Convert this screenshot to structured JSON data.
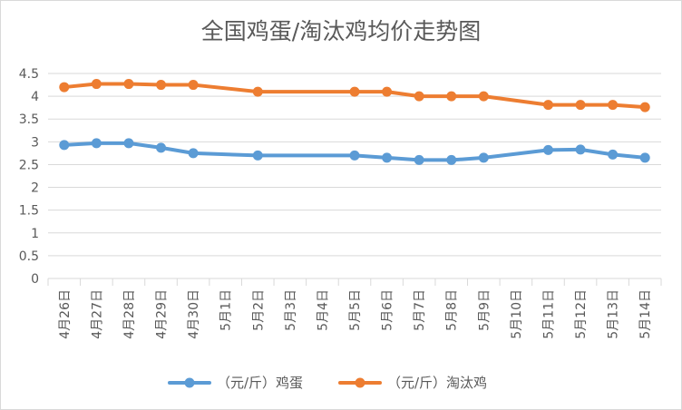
{
  "chart_data": {
    "type": "line",
    "title": "全国鸡蛋/淘汰鸡均价走势图",
    "categories": [
      "4月26日",
      "4月27日",
      "4月28日",
      "4月29日",
      "4月30日",
      "5月1日",
      "5月2日",
      "5月3日",
      "5月4日",
      "5月5日",
      "5月6日",
      "5月7日",
      "5月8日",
      "5月9日",
      "5月10日",
      "5月11日",
      "5月12日",
      "5月13日",
      "5月14日"
    ],
    "ylim": [
      0,
      4.5
    ],
    "yticks": [
      "0",
      "0.5",
      "1",
      "1.5",
      "2",
      "2.5",
      "3",
      "3.5",
      "4",
      "4.5"
    ],
    "grid": true,
    "legend_position": "bottom",
    "series": [
      {
        "name": "（元/斤）鸡蛋",
        "color": "#5b9bd5",
        "values": [
          2.93,
          2.97,
          2.97,
          2.87,
          2.75,
          null,
          2.7,
          null,
          null,
          2.7,
          2.65,
          2.6,
          2.6,
          2.65,
          null,
          2.82,
          2.83,
          2.72,
          2.65
        ]
      },
      {
        "name": "（元/斤）淘汰鸡",
        "color": "#ed7d31",
        "values": [
          4.2,
          4.27,
          4.27,
          4.25,
          4.25,
          null,
          4.1,
          null,
          null,
          4.1,
          4.1,
          4.0,
          4.0,
          4.0,
          null,
          3.81,
          3.81,
          3.81,
          3.76
        ]
      }
    ]
  }
}
